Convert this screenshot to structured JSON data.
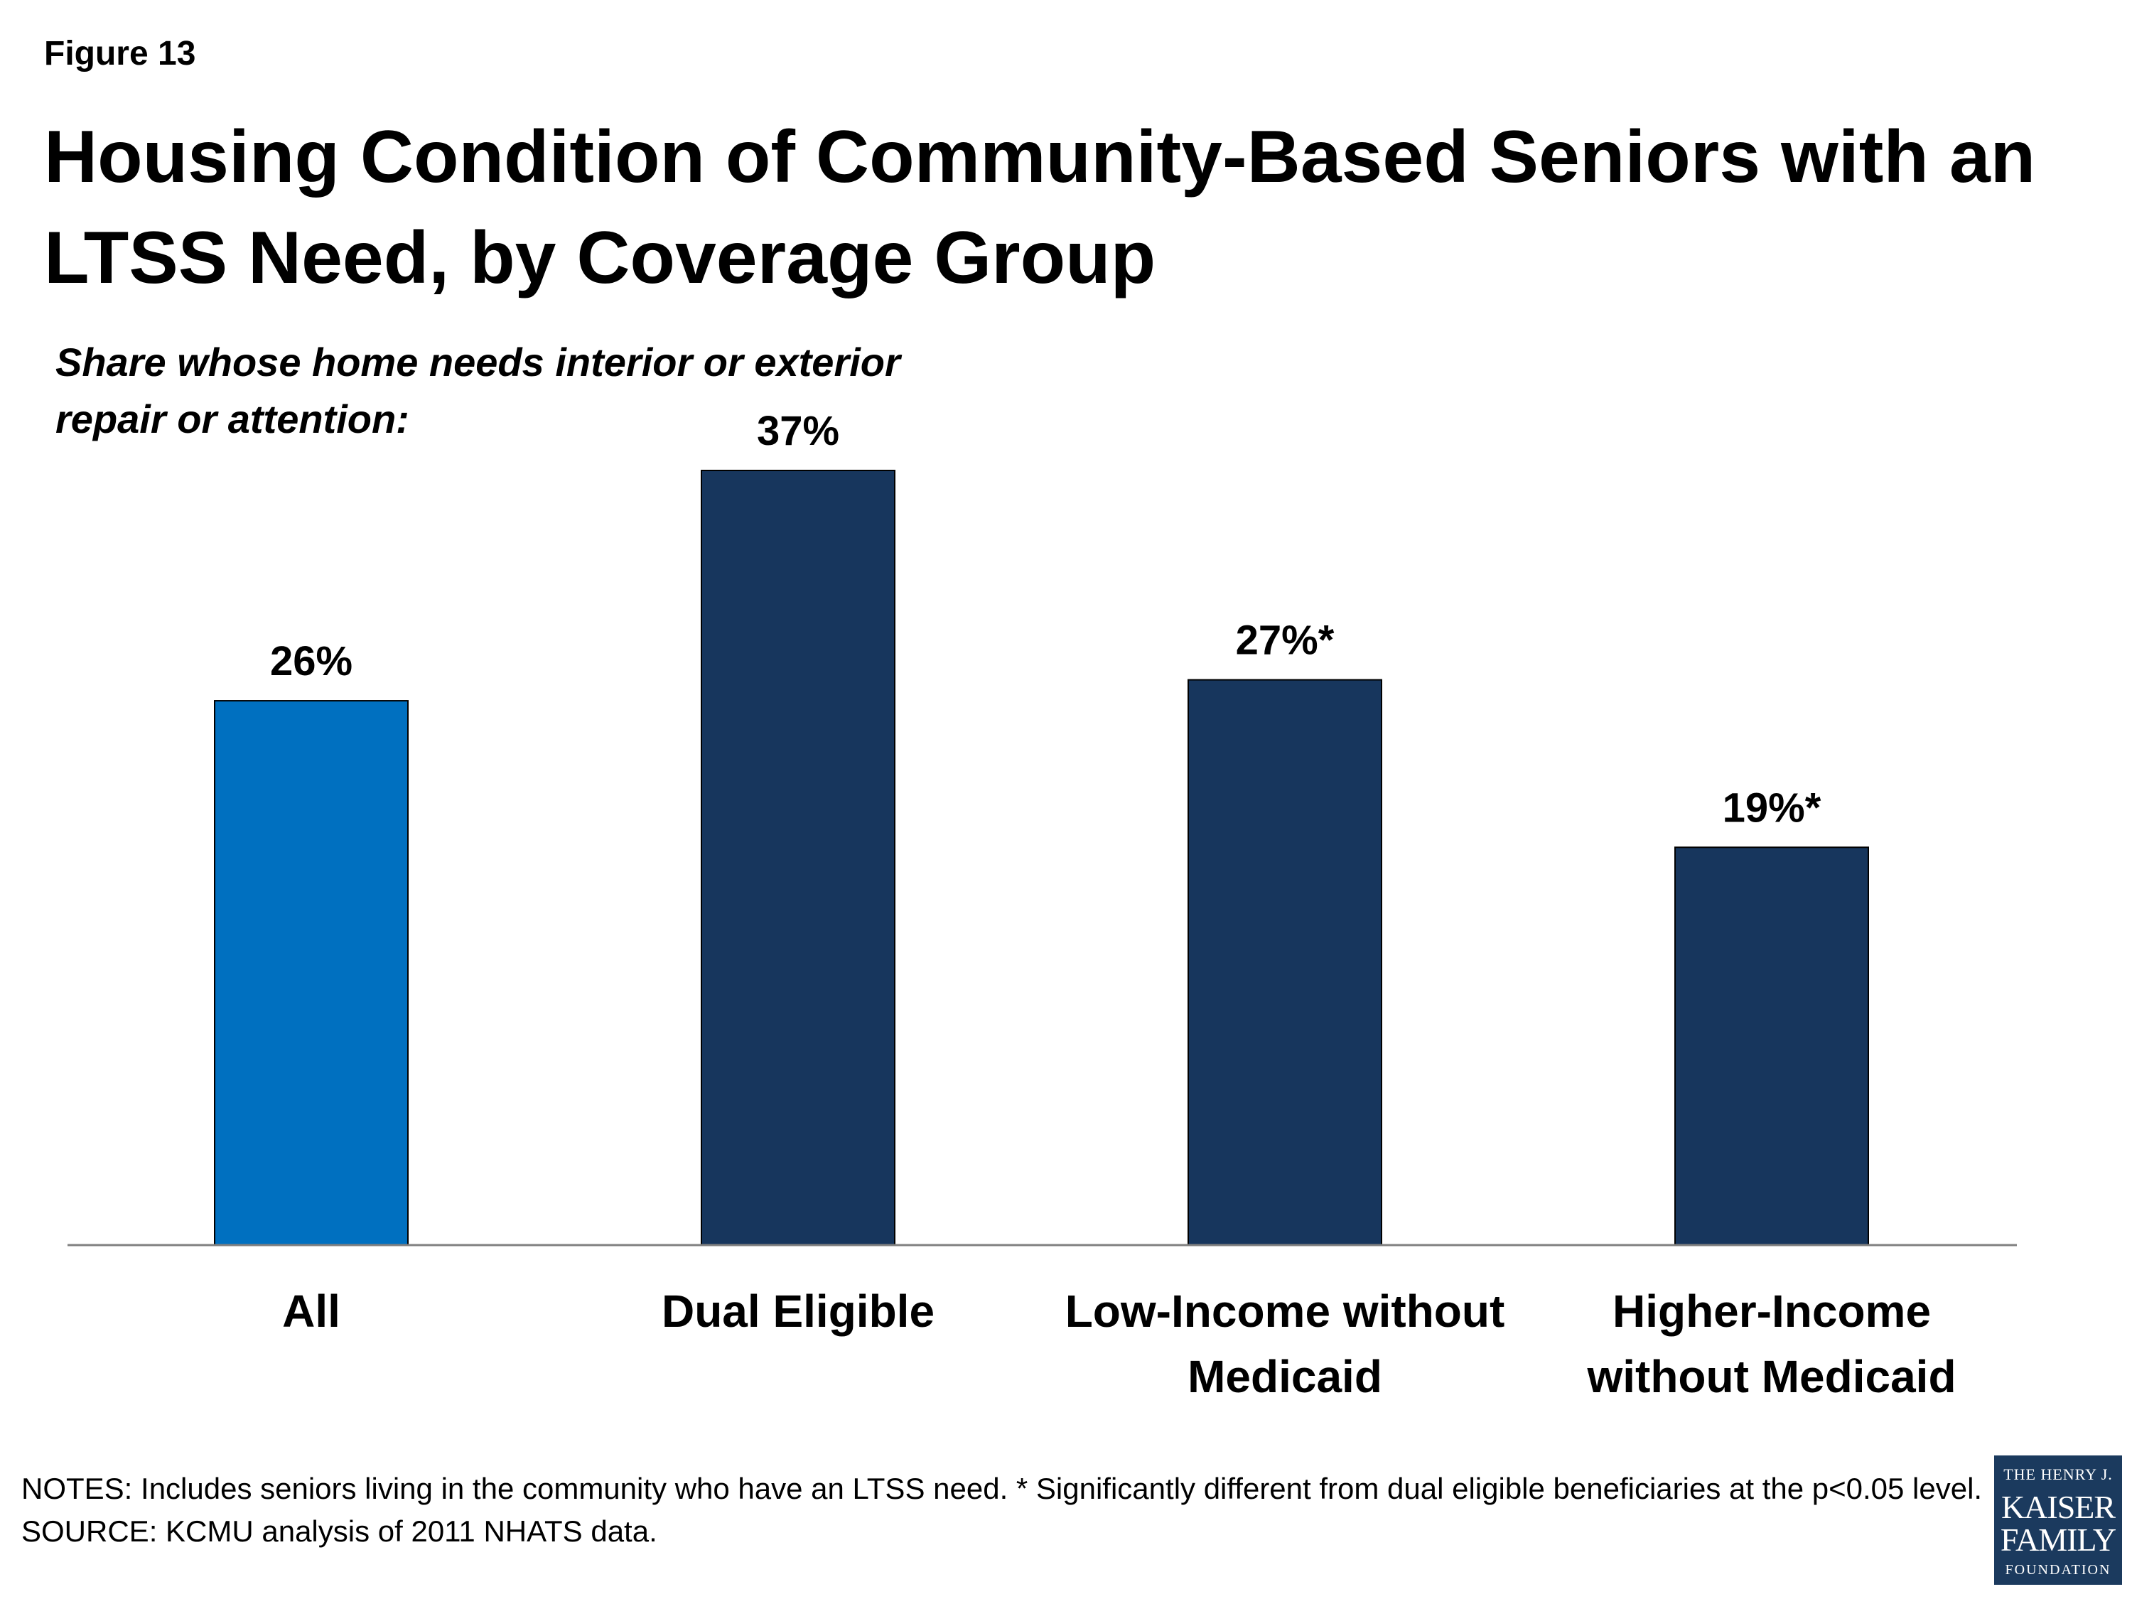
{
  "figure_label": "Figure 13",
  "colors": {
    "highlight_bar": "#0070c0",
    "bar": "#17365d",
    "axis": "#808080"
  },
  "chart_data": {
    "type": "bar",
    "title": "Housing Condition of Community-Based Seniors with an LTSS Need, by Coverage Group",
    "subtitle": "Share whose home needs interior or exterior repair or attention:",
    "categories": [
      "All",
      "Dual Eligible",
      "Low-Income without Medicaid",
      "Higher-Income without Medicaid"
    ],
    "category_label_lines": [
      [
        "All"
      ],
      [
        "Dual Eligible"
      ],
      [
        "Low-Income without",
        "Medicaid"
      ],
      [
        "Higher-Income",
        "without Medicaid"
      ]
    ],
    "values": [
      26,
      37,
      27,
      19
    ],
    "data_labels": [
      "26%",
      "37%",
      "27%*",
      "19%*"
    ],
    "highlight_index": 0,
    "ylim": [
      0,
      37
    ],
    "grid": false,
    "legend": "none"
  },
  "notes": {
    "notes_text": "NOTES: Includes seniors living in the community who have an LTSS need. * Significantly different from dual eligible beneficiaries at the p<0.05 level.",
    "source_text": "SOURCE: KCMU analysis of 2011 NHATS data."
  },
  "logo": {
    "line1": "THE HENRY J.",
    "line2": "KAISER",
    "line3": "FAMILY",
    "line4": "FOUNDATION"
  }
}
